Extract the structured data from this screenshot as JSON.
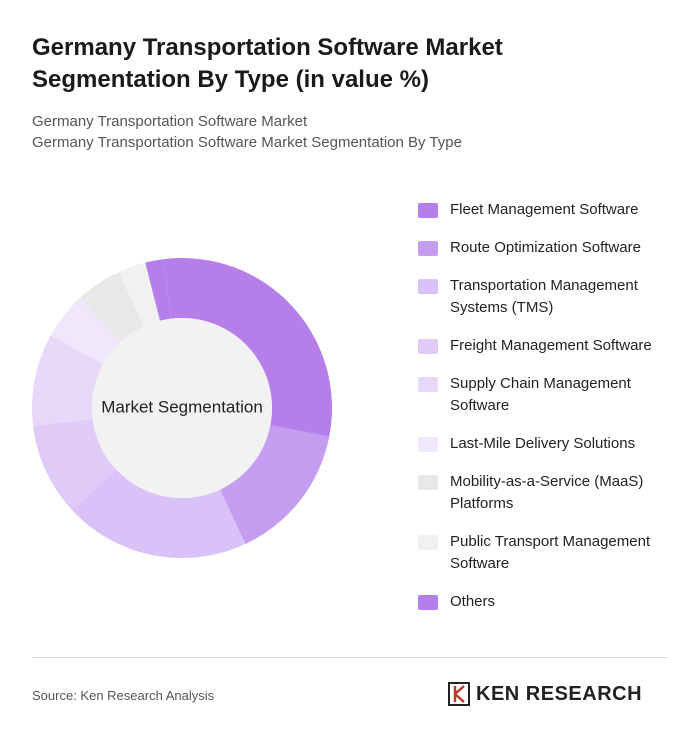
{
  "chart_data": {
    "type": "donut",
    "title": "Germany Transportation Software Market Segmentation By Type (in value %)",
    "subtitle": [
      "Germany Transportation Software Market",
      "Germany Transportation Software Market Segmentation By Type"
    ],
    "center_label": "Market Segmentation",
    "categories": [
      "Fleet Management Software",
      "Route Optimization Software",
      "Transportation Management Systems (TMS)",
      "Freight Management Software",
      "Supply Chain Management Software",
      "Last-Mile Delivery Solutions",
      "Mobility-as-a-Service (MaaS) Platforms",
      "Public Transport Management Software",
      "Others"
    ],
    "values": [
      30,
      15,
      20,
      10,
      10,
      5,
      5,
      3,
      2
    ],
    "colors": [
      "#b57ee9",
      "#c49df0",
      "#d9c2f7",
      "#dfcaf8",
      "#e7d8fa",
      "#efe7fb",
      "#e8e8e8",
      "#f1f1f1",
      "#b57ee9"
    ],
    "source": "Source: Ken Research Analysis",
    "brand": "KEN RESEARCH"
  }
}
